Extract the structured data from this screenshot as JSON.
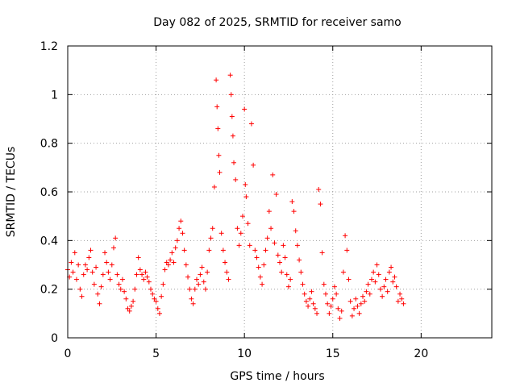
{
  "chart_data": {
    "type": "scatter",
    "title": "Day 082 of 2025, SRMTID for receiver samo",
    "xlabel": "GPS time / hours",
    "ylabel": "SRMTID / TECUs",
    "xlim": [
      0,
      24
    ],
    "ylim": [
      0,
      1.2
    ],
    "xticks": [
      0,
      5,
      10,
      15,
      20
    ],
    "xtick_labels": [
      "0",
      "5",
      "10",
      "15",
      "20"
    ],
    "yticks": [
      0,
      0.2,
      0.4,
      0.6,
      0.8,
      1,
      1.2
    ],
    "ytick_labels": [
      "0",
      "0.2",
      "0.4",
      "0.6",
      "0.8",
      "1",
      "1.2"
    ],
    "grid": true,
    "marker": "+",
    "color": "#ff0000",
    "series": [
      {
        "name": "SRMTID",
        "points": [
          [
            0.0,
            0.28
          ],
          [
            0.1,
            0.25
          ],
          [
            0.2,
            0.31
          ],
          [
            0.3,
            0.27
          ],
          [
            0.4,
            0.35
          ],
          [
            0.5,
            0.24
          ],
          [
            0.6,
            0.3
          ],
          [
            0.7,
            0.2
          ],
          [
            0.8,
            0.17
          ],
          [
            0.9,
            0.26
          ],
          [
            1.0,
            0.3
          ],
          [
            1.1,
            0.28
          ],
          [
            1.2,
            0.33
          ],
          [
            1.3,
            0.36
          ],
          [
            1.4,
            0.27
          ],
          [
            1.5,
            0.22
          ],
          [
            1.6,
            0.29
          ],
          [
            1.7,
            0.18
          ],
          [
            1.8,
            0.14
          ],
          [
            1.9,
            0.21
          ],
          [
            2.0,
            0.26
          ],
          [
            2.1,
            0.35
          ],
          [
            2.2,
            0.31
          ],
          [
            2.3,
            0.27
          ],
          [
            2.4,
            0.24
          ],
          [
            2.5,
            0.3
          ],
          [
            2.6,
            0.37
          ],
          [
            2.7,
            0.41
          ],
          [
            2.8,
            0.26
          ],
          [
            2.9,
            0.22
          ],
          [
            3.0,
            0.2
          ],
          [
            3.1,
            0.24
          ],
          [
            3.2,
            0.19
          ],
          [
            3.3,
            0.16
          ],
          [
            3.4,
            0.12
          ],
          [
            3.5,
            0.11
          ],
          [
            3.6,
            0.13
          ],
          [
            3.7,
            0.15
          ],
          [
            3.8,
            0.2
          ],
          [
            3.9,
            0.26
          ],
          [
            4.0,
            0.33
          ],
          [
            4.1,
            0.28
          ],
          [
            4.2,
            0.26
          ],
          [
            4.3,
            0.24
          ],
          [
            4.4,
            0.27
          ],
          [
            4.5,
            0.25
          ],
          [
            4.6,
            0.23
          ],
          [
            4.7,
            0.2
          ],
          [
            4.8,
            0.18
          ],
          [
            4.9,
            0.16
          ],
          [
            5.0,
            0.15
          ],
          [
            5.1,
            0.12
          ],
          [
            5.2,
            0.1
          ],
          [
            5.3,
            0.17
          ],
          [
            5.4,
            0.22
          ],
          [
            5.5,
            0.28
          ],
          [
            5.6,
            0.31
          ],
          [
            5.7,
            0.3
          ],
          [
            5.8,
            0.32
          ],
          [
            5.9,
            0.35
          ],
          [
            6.0,
            0.31
          ],
          [
            6.1,
            0.37
          ],
          [
            6.2,
            0.4
          ],
          [
            6.3,
            0.45
          ],
          [
            6.4,
            0.48
          ],
          [
            6.5,
            0.43
          ],
          [
            6.6,
            0.36
          ],
          [
            6.7,
            0.3
          ],
          [
            6.8,
            0.25
          ],
          [
            6.9,
            0.2
          ],
          [
            7.0,
            0.16
          ],
          [
            7.1,
            0.14
          ],
          [
            7.2,
            0.2
          ],
          [
            7.3,
            0.24
          ],
          [
            7.4,
            0.22
          ],
          [
            7.5,
            0.26
          ],
          [
            7.6,
            0.29
          ],
          [
            7.7,
            0.23
          ],
          [
            7.8,
            0.2
          ],
          [
            7.9,
            0.27
          ],
          [
            8.0,
            0.36
          ],
          [
            8.1,
            0.41
          ],
          [
            8.2,
            0.45
          ],
          [
            8.3,
            0.62
          ],
          [
            8.4,
            1.06
          ],
          [
            8.45,
            0.95
          ],
          [
            8.5,
            0.86
          ],
          [
            8.55,
            0.75
          ],
          [
            8.6,
            0.68
          ],
          [
            8.7,
            0.43
          ],
          [
            8.8,
            0.36
          ],
          [
            8.9,
            0.31
          ],
          [
            9.0,
            0.27
          ],
          [
            9.1,
            0.24
          ],
          [
            9.2,
            1.08
          ],
          [
            9.25,
            1.0
          ],
          [
            9.3,
            0.91
          ],
          [
            9.35,
            0.83
          ],
          [
            9.4,
            0.72
          ],
          [
            9.5,
            0.65
          ],
          [
            9.6,
            0.45
          ],
          [
            9.7,
            0.38
          ],
          [
            9.8,
            0.43
          ],
          [
            9.9,
            0.5
          ],
          [
            10.0,
            0.94
          ],
          [
            10.05,
            0.63
          ],
          [
            10.1,
            0.58
          ],
          [
            10.2,
            0.47
          ],
          [
            10.3,
            0.38
          ],
          [
            10.4,
            0.88
          ],
          [
            10.5,
            0.71
          ],
          [
            10.6,
            0.36
          ],
          [
            10.7,
            0.33
          ],
          [
            10.8,
            0.29
          ],
          [
            10.9,
            0.25
          ],
          [
            11.0,
            0.22
          ],
          [
            11.1,
            0.3
          ],
          [
            11.2,
            0.36
          ],
          [
            11.3,
            0.41
          ],
          [
            11.4,
            0.52
          ],
          [
            11.5,
            0.45
          ],
          [
            11.6,
            0.67
          ],
          [
            11.7,
            0.39
          ],
          [
            11.8,
            0.59
          ],
          [
            11.9,
            0.34
          ],
          [
            12.0,
            0.31
          ],
          [
            12.1,
            0.27
          ],
          [
            12.2,
            0.38
          ],
          [
            12.3,
            0.33
          ],
          [
            12.4,
            0.26
          ],
          [
            12.5,
            0.21
          ],
          [
            12.6,
            0.24
          ],
          [
            12.7,
            0.56
          ],
          [
            12.8,
            0.52
          ],
          [
            12.9,
            0.44
          ],
          [
            13.0,
            0.38
          ],
          [
            13.1,
            0.32
          ],
          [
            13.2,
            0.27
          ],
          [
            13.3,
            0.22
          ],
          [
            13.4,
            0.18
          ],
          [
            13.5,
            0.15
          ],
          [
            13.6,
            0.13
          ],
          [
            13.7,
            0.16
          ],
          [
            13.8,
            0.19
          ],
          [
            13.9,
            0.14
          ],
          [
            14.0,
            0.12
          ],
          [
            14.1,
            0.1
          ],
          [
            14.2,
            0.61
          ],
          [
            14.3,
            0.55
          ],
          [
            14.4,
            0.35
          ],
          [
            14.5,
            0.22
          ],
          [
            14.6,
            0.18
          ],
          [
            14.7,
            0.14
          ],
          [
            14.8,
            0.1
          ],
          [
            14.9,
            0.13
          ],
          [
            15.0,
            0.16
          ],
          [
            15.1,
            0.21
          ],
          [
            15.2,
            0.18
          ],
          [
            15.3,
            0.12
          ],
          [
            15.4,
            0.08
          ],
          [
            15.5,
            0.11
          ],
          [
            15.6,
            0.27
          ],
          [
            15.7,
            0.42
          ],
          [
            15.8,
            0.36
          ],
          [
            15.9,
            0.24
          ],
          [
            16.0,
            0.15
          ],
          [
            16.1,
            0.09
          ],
          [
            16.2,
            0.12
          ],
          [
            16.3,
            0.16
          ],
          [
            16.4,
            0.13
          ],
          [
            16.5,
            0.1
          ],
          [
            16.6,
            0.14
          ],
          [
            16.7,
            0.17
          ],
          [
            16.8,
            0.15
          ],
          [
            16.9,
            0.19
          ],
          [
            17.0,
            0.22
          ],
          [
            17.1,
            0.18
          ],
          [
            17.2,
            0.24
          ],
          [
            17.3,
            0.27
          ],
          [
            17.4,
            0.23
          ],
          [
            17.5,
            0.3
          ],
          [
            17.6,
            0.26
          ],
          [
            17.7,
            0.2
          ],
          [
            17.8,
            0.17
          ],
          [
            17.9,
            0.21
          ],
          [
            18.0,
            0.24
          ],
          [
            18.1,
            0.19
          ],
          [
            18.2,
            0.27
          ],
          [
            18.3,
            0.29
          ],
          [
            18.4,
            0.23
          ],
          [
            18.5,
            0.25
          ],
          [
            18.6,
            0.21
          ],
          [
            18.7,
            0.15
          ],
          [
            18.8,
            0.18
          ],
          [
            18.9,
            0.16
          ],
          [
            19.0,
            0.14
          ]
        ]
      }
    ]
  }
}
